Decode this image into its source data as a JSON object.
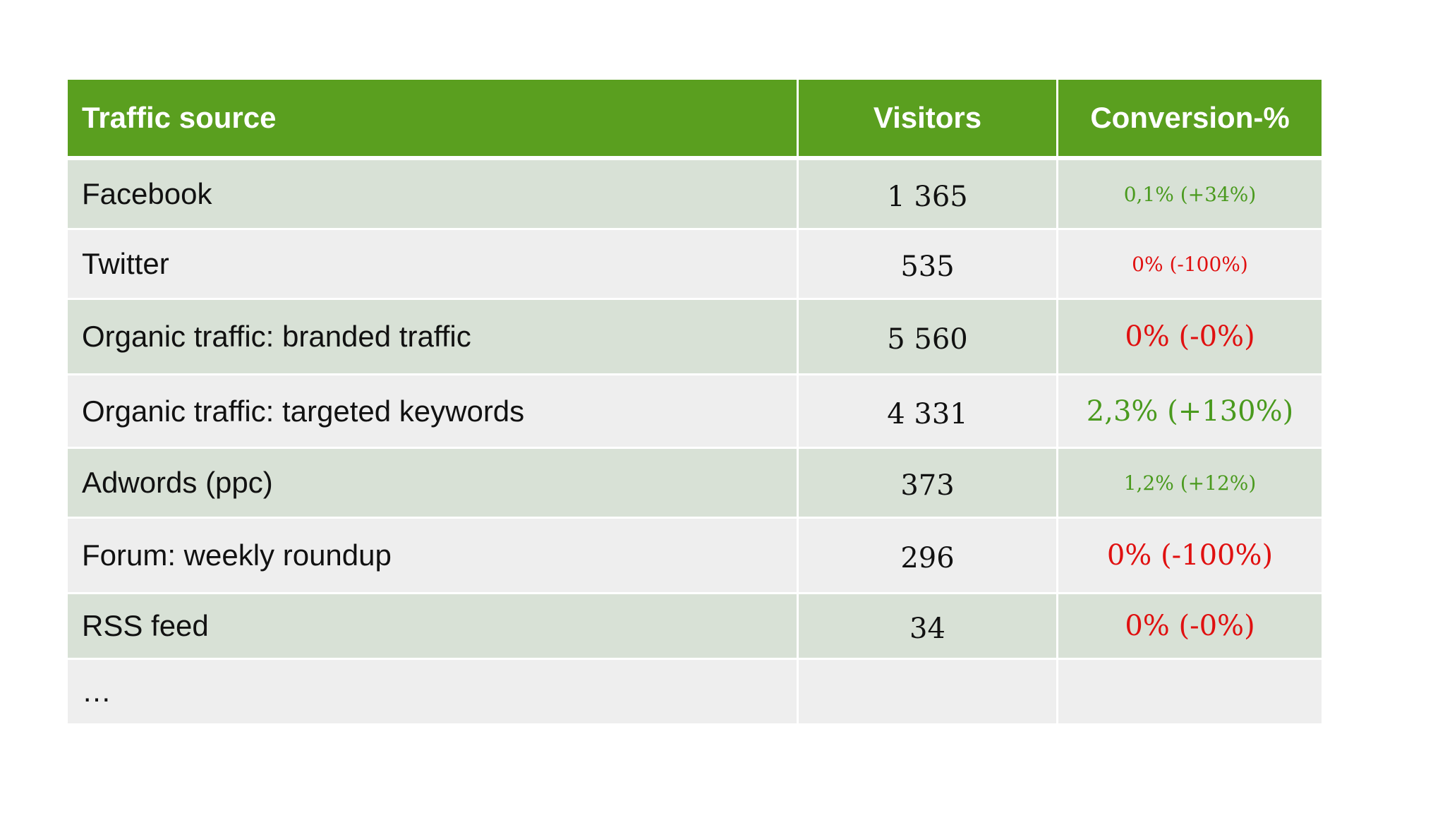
{
  "table": {
    "headers": {
      "source": "Traffic source",
      "visitors": "Visitors",
      "conversion": "Conversion-%"
    },
    "rows": [
      {
        "source": "Facebook",
        "visitors": "1 365",
        "conversion": "0,1% (+34%)",
        "trend": "positive"
      },
      {
        "source": "Twitter",
        "visitors": "535",
        "conversion": "0% (-100%)",
        "trend": "negative"
      },
      {
        "source": "Organic traffic: branded traffic",
        "visitors": "5 560",
        "conversion": "0% (-0%)",
        "trend": "negative"
      },
      {
        "source": "Organic traffic: targeted keywords",
        "visitors": "4 331",
        "conversion": "2,3% (+130%)",
        "trend": "positive"
      },
      {
        "source": "Adwords (ppc)",
        "visitors": "373",
        "conversion": "1,2% (+12%)",
        "trend": "positive"
      },
      {
        "source": "Forum: weekly roundup",
        "visitors": "296",
        "conversion": "0% (-100%)",
        "trend": "negative"
      },
      {
        "source": "RSS feed",
        "visitors": "34",
        "conversion": "0% (-0%)",
        "trend": "negative"
      },
      {
        "source": "…",
        "visitors": "",
        "conversion": "",
        "trend": ""
      }
    ]
  },
  "colors": {
    "header_bg": "#5a9f1f",
    "row_dark_bg": "#d8e1d6",
    "row_light_bg": "#eeeeee",
    "positive": "#4a9a1e",
    "negative": "#e01010"
  }
}
